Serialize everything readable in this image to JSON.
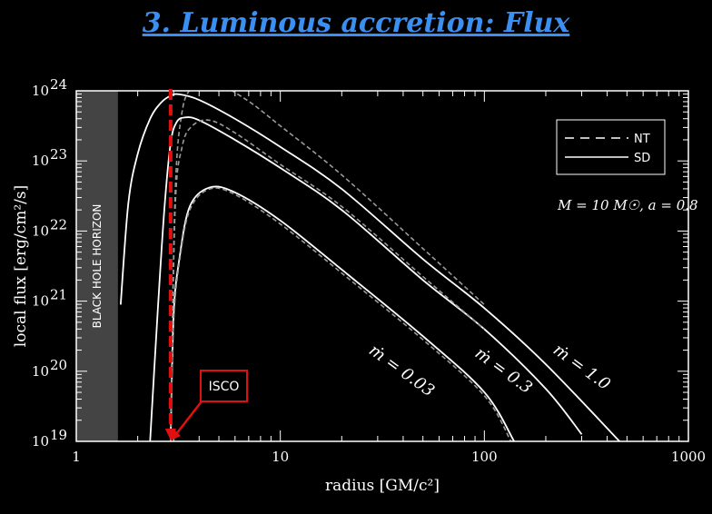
{
  "slide": {
    "title": "3. Luminous accretion: Flux"
  },
  "chart_data": {
    "type": "line",
    "xlabel": "radius [GM/c²]",
    "ylabel": "local flux [erg/cm²/s]",
    "x_scale": "log",
    "y_scale": "log",
    "xlim": [
      1,
      1000
    ],
    "ylim": [
      1e+19,
      1e+24
    ],
    "x_ticks": [
      {
        "value": 1,
        "label": "1"
      },
      {
        "value": 10,
        "label": "10"
      },
      {
        "value": 100,
        "label": "100"
      },
      {
        "value": 1000,
        "label": "1000"
      }
    ],
    "y_ticks": [
      {
        "exp": 19,
        "base": "10",
        "sup": "19"
      },
      {
        "exp": 20,
        "base": "10",
        "sup": "20"
      },
      {
        "exp": 21,
        "base": "10",
        "sup": "21"
      },
      {
        "exp": 22,
        "base": "10",
        "sup": "22"
      },
      {
        "exp": 23,
        "base": "10",
        "sup": "23"
      },
      {
        "exp": 24,
        "base": "10",
        "sup": "24"
      }
    ],
    "legend": {
      "position": "top-right",
      "entries": [
        {
          "label": "NT",
          "style": "dashed"
        },
        {
          "label": "SD",
          "style": "solid"
        }
      ]
    },
    "parameters_label": "M = 10 M☉, a = 0.8",
    "horizon": {
      "label": "BLACK HOLE HORIZON",
      "r_max": 1.6
    },
    "isco": {
      "label": "ISCO",
      "r": 2.9
    },
    "series": [
      {
        "label": "ṁ = 1.0",
        "style": "solid",
        "x": [
          1.65,
          1.8,
          2.0,
          2.3,
          2.6,
          2.9,
          3.2,
          4,
          6,
          10,
          20,
          50,
          100,
          200,
          460
        ],
        "y": [
          20.95,
          22.4,
          23.1,
          23.6,
          23.83,
          23.93,
          23.95,
          23.87,
          23.6,
          23.2,
          22.6,
          21.6,
          20.9,
          20.1,
          19.0
        ]
      },
      {
        "label": "ṁ = 1.0 (NT)",
        "style": "dashed",
        "x": [
          2.9,
          3.05,
          3.3,
          3.7,
          4.3,
          5,
          7,
          10,
          20,
          50,
          100
        ],
        "y": [
          19.0,
          22.5,
          23.7,
          24.05,
          24.13,
          24.1,
          23.85,
          23.5,
          22.8,
          21.75,
          20.95
        ]
      },
      {
        "label": "ṁ = 0.3",
        "style": "solid",
        "x": [
          2.3,
          2.5,
          2.7,
          2.9,
          3.1,
          3.4,
          4,
          6,
          10,
          20,
          50,
          100,
          200,
          300
        ],
        "y": [
          19.0,
          20.8,
          22.3,
          23.25,
          23.55,
          23.62,
          23.58,
          23.3,
          22.9,
          22.3,
          21.3,
          20.6,
          19.75,
          19.1
        ]
      },
      {
        "label": "ṁ = 0.3 (NT)",
        "style": "dashed",
        "x": [
          2.9,
          3.05,
          3.3,
          3.7,
          4.5,
          6,
          10,
          20,
          50,
          100
        ],
        "y": [
          19.0,
          22.3,
          23.2,
          23.5,
          23.58,
          23.4,
          22.95,
          22.35,
          21.35,
          20.6
        ]
      },
      {
        "label": "ṁ = 0.03",
        "style": "solid",
        "x": [
          2.9,
          3.0,
          3.2,
          3.6,
          4.5,
          6,
          10,
          20,
          50,
          100,
          140
        ],
        "y": [
          19.0,
          20.8,
          21.6,
          22.35,
          22.62,
          22.55,
          22.15,
          21.45,
          20.5,
          19.7,
          19.0
        ]
      },
      {
        "label": "ṁ = 0.03 (NT)",
        "style": "dashed",
        "x": [
          2.9,
          3.0,
          3.2,
          3.6,
          4.5,
          6,
          10,
          20,
          50,
          100,
          135
        ],
        "y": [
          19.0,
          20.7,
          21.55,
          22.3,
          22.6,
          22.52,
          22.1,
          21.4,
          20.45,
          19.65,
          19.0
        ]
      }
    ],
    "curve_labels": [
      {
        "text": "ṁ = 0.03",
        "x": 38,
        "y": 19.95
      },
      {
        "text": "ṁ = 0.3",
        "x": 120,
        "y": 19.95
      },
      {
        "text": "ṁ = 1.0",
        "x": 290,
        "y": 20.0
      }
    ]
  },
  "colors": {
    "background": "#000000",
    "title": "#3b8ff0",
    "curves": "#ffffff",
    "dashed_curves": "#9a9a9a",
    "isco_marker": "#e01010",
    "horizon_fill": "#444444"
  }
}
